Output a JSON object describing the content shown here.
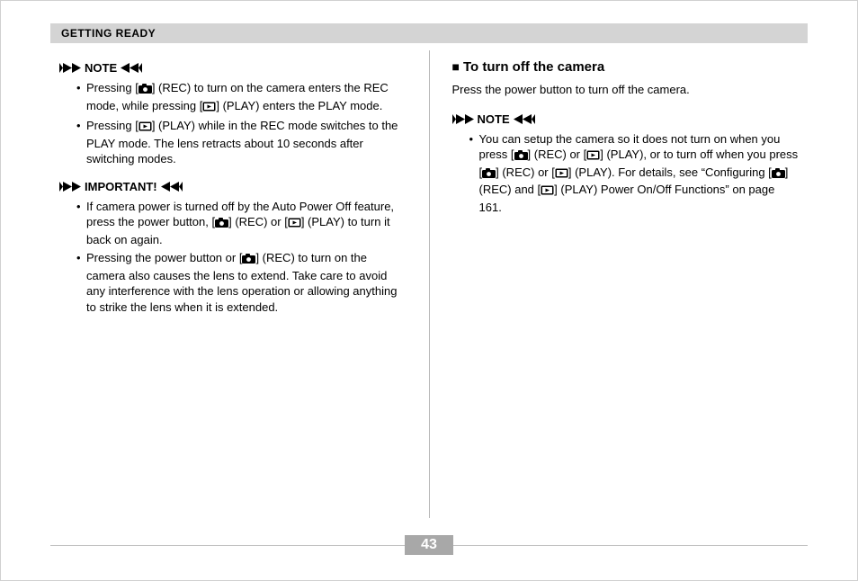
{
  "header": {
    "title": "GETTING READY"
  },
  "labels": {
    "note": "NOTE",
    "important": "IMPORTANT!"
  },
  "left": {
    "note_items": [
      "Pressing [__CAM__] (REC) to turn on the camera enters the REC mode, while pressing [__PLAY__] (PLAY) enters the PLAY mode.",
      "Pressing [__PLAY__] (PLAY) while in the REC mode switches to the PLAY mode. The lens retracts about 10 seconds after switching modes."
    ],
    "important_items": [
      "If camera power is turned off by the Auto Power Off feature, press the power button, [__CAM__] (REC) or [__PLAY__] (PLAY) to turn it back on again.",
      "Pressing the power button or [__CAM__] (REC) to turn on the camera also causes the lens to extend. Take care to avoid any interference with the lens operation or allowing anything to strike the lens when it is extended."
    ]
  },
  "right": {
    "heading": "To turn off the camera",
    "body": "Press the power button to turn off the camera.",
    "note_items": [
      "You can setup the camera so it does not turn on when you press [__CAM__] (REC) or [__PLAY__] (PLAY), or to turn off when you press [__CAM__] (REC) or [__PLAY__] (PLAY). For details, see “Configuring [__CAM__] (REC) and [__PLAY__] (PLAY) Power On/Off Functions” on page 161."
    ]
  },
  "footer": {
    "page_number": "43"
  },
  "icons": {
    "camera_svg": "<svg width='15' height='11' viewBox='0 0 15 11'><rect x='0' y='2' width='15' height='9' rx='1.5' fill='#000'/><rect x='4' y='0' width='5' height='3' rx='1' fill='#000'/><circle cx='7.5' cy='6.5' r='2.4' fill='#fff'/></svg>",
    "play_svg": "<svg width='15' height='11' viewBox='0 0 15 11'><rect x='0.5' y='0.5' width='14' height='10' rx='1.5' fill='#000'/><rect x='2' y='2' width='11' height='7' fill='#fff'/><polygon points='5.5,3.5 10,5.5 5.5,7.5' fill='#000'/></svg>",
    "arrows_right_svg": "<svg width='24' height='11' viewBox='0 0 24 11'><polygon points='0,0 4,5.5 0,11' fill='#000'/><polygon points='4,0 14,5.5 4,11' fill='#000'/><polygon points='14,0 24,5.5 14,11' fill='#000'/></svg>",
    "arrows_left_svg": "<svg width='24' height='11' viewBox='0 0 24 11'><polygon points='24,0 20,5.5 24,11' fill='#000'/><polygon points='20,0 10,5.5 20,11' fill='#000'/><polygon points='10,0 0,5.5 10,11' fill='#000'/></svg>"
  }
}
